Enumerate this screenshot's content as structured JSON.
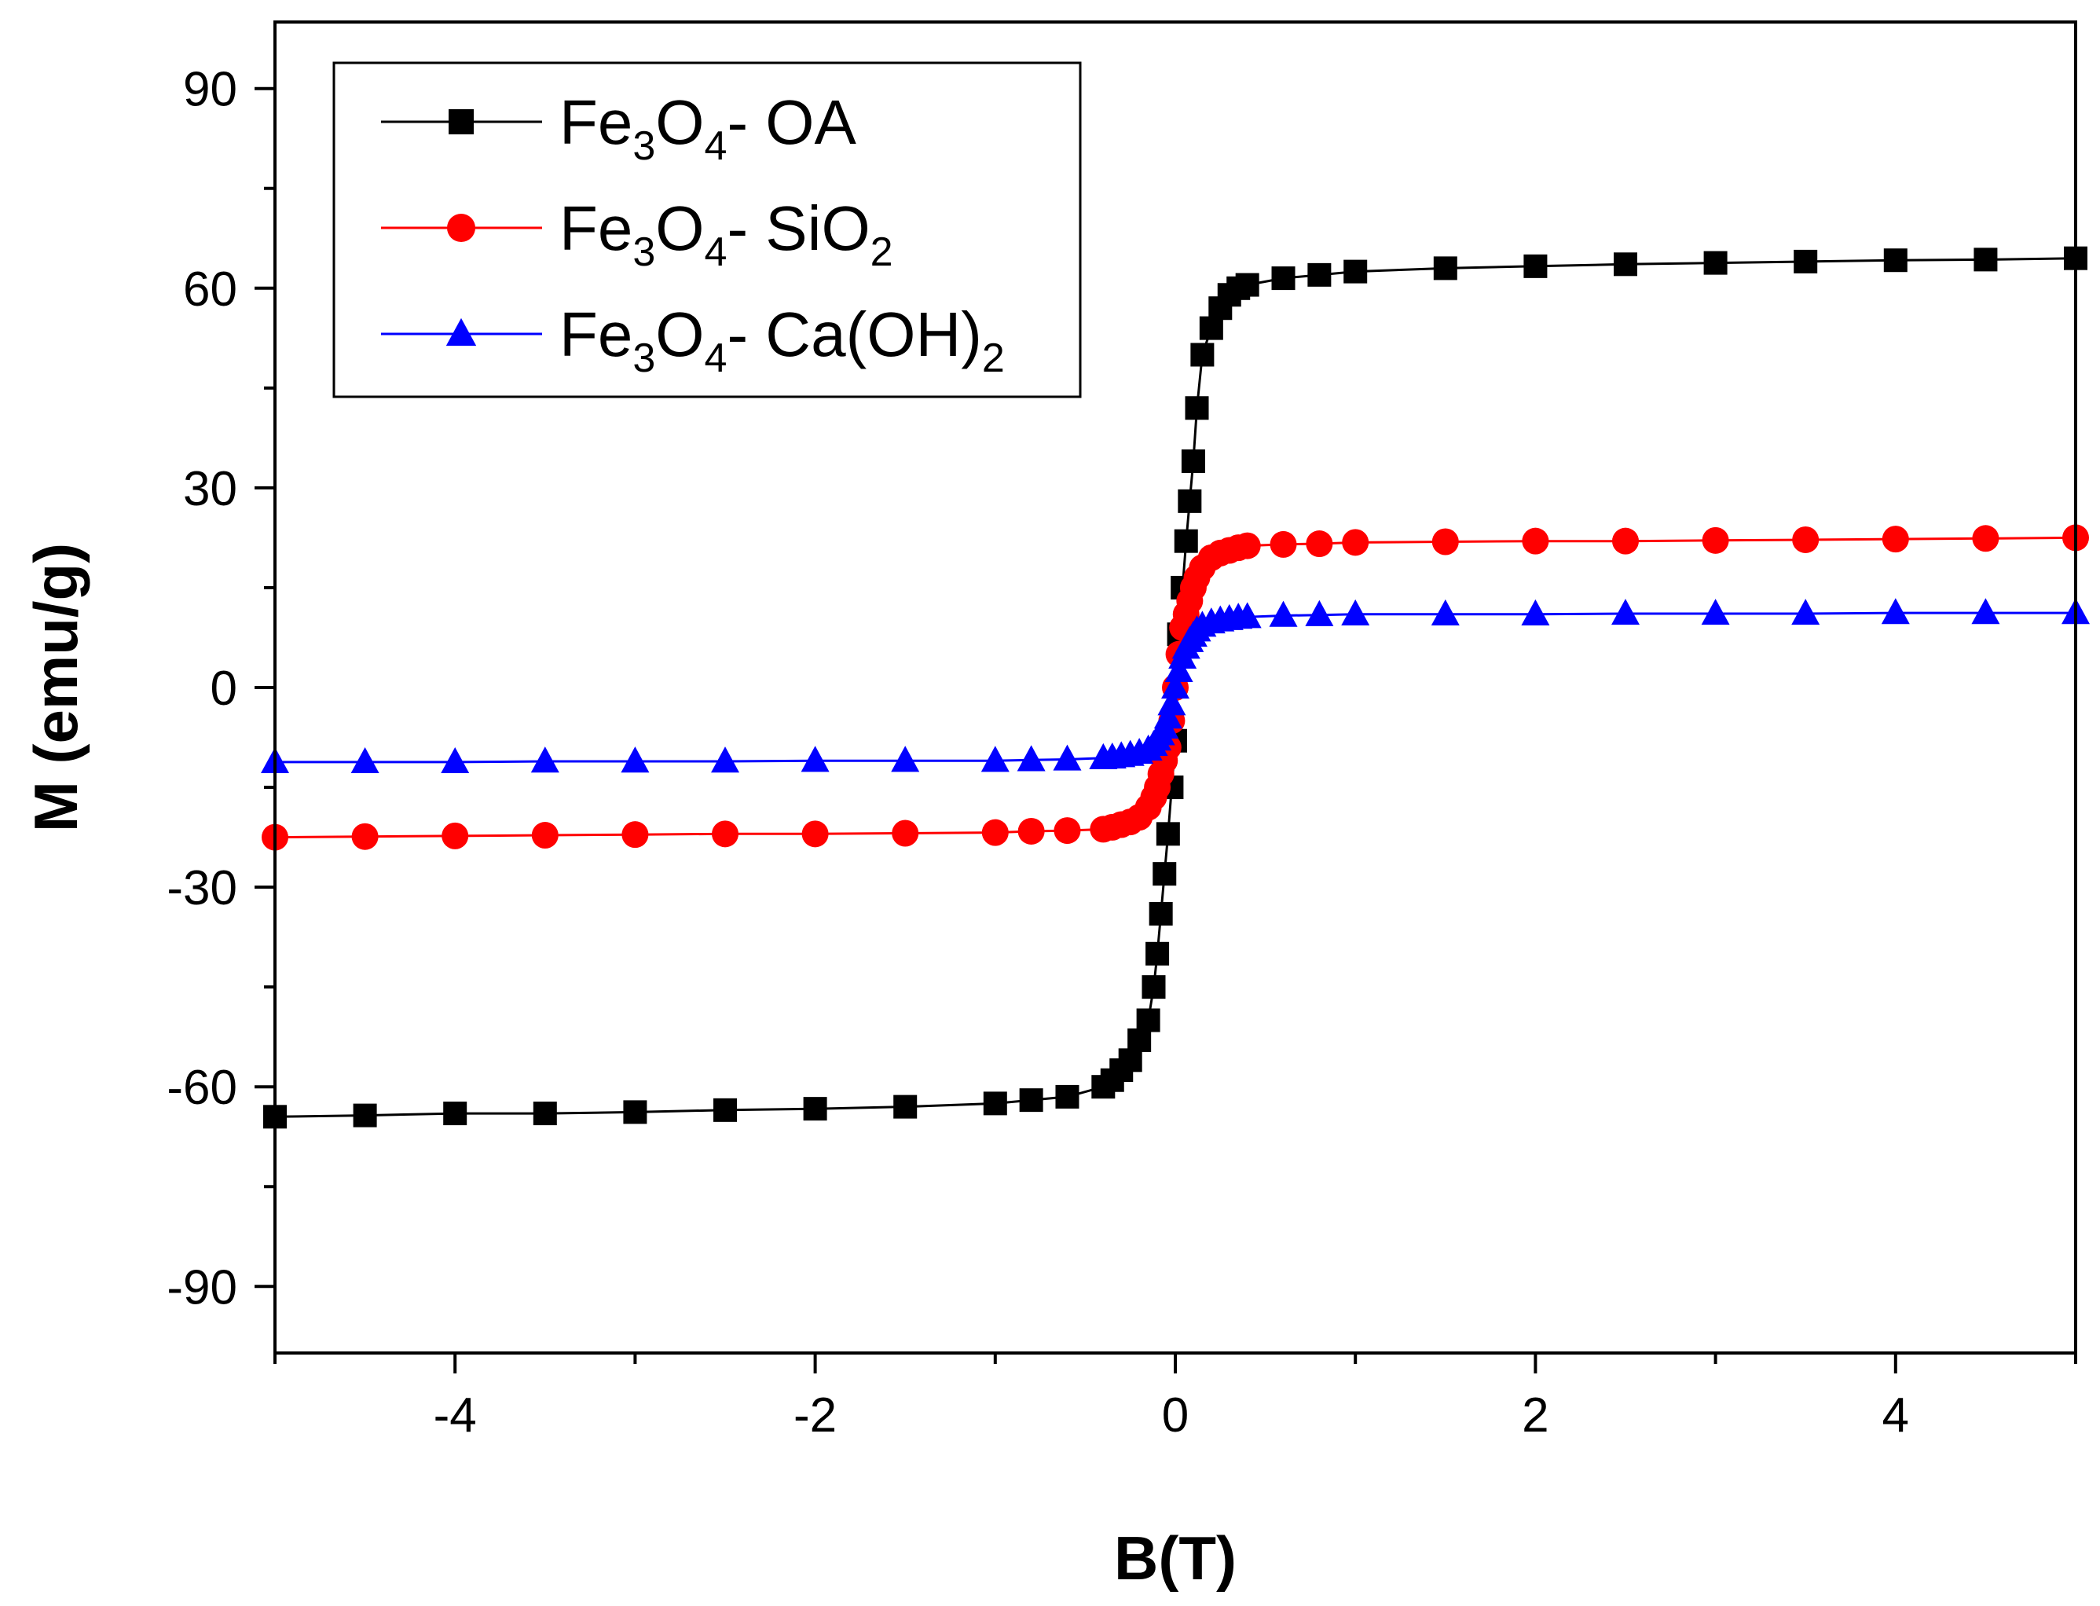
{
  "chart_data": {
    "type": "line",
    "title": "",
    "xlabel": "B(T)",
    "ylabel": "M (emu/g)",
    "xlim": [
      -5,
      5
    ],
    "ylim": [
      -100,
      100
    ],
    "xticks": [
      -4,
      -2,
      0,
      2,
      4
    ],
    "xtick_labels": [
      "-4",
      "-2",
      "0",
      "2",
      "4"
    ],
    "yticks": [
      -90,
      -60,
      -30,
      0,
      30,
      60,
      90
    ],
    "ytick_labels": [
      "-90",
      "-60",
      "-30",
      "0",
      "30",
      "60",
      "90"
    ],
    "grid": false,
    "legend_position": "top-left",
    "series": [
      {
        "name": "Fe3O4- OA",
        "legend": {
          "base": "Fe",
          "s1": "3",
          "mid": "O",
          "s2": "4",
          "suffix": "- OA",
          "s3": ""
        },
        "color": "#000000",
        "marker": "square",
        "x": [
          -5,
          -4.5,
          -4,
          -3.5,
          -3,
          -2.5,
          -2,
          -1.5,
          -1,
          -0.8,
          -0.6,
          -0.4,
          -0.35,
          -0.3,
          -0.25,
          -0.2,
          -0.15,
          -0.12,
          -0.1,
          -0.08,
          -0.06,
          -0.04,
          -0.02,
          0,
          0.02,
          0.04,
          0.06,
          0.08,
          0.1,
          0.12,
          0.15,
          0.2,
          0.25,
          0.3,
          0.35,
          0.4,
          0.6,
          0.8,
          1,
          1.5,
          2,
          2.5,
          3,
          3.5,
          4,
          4.5,
          5
        ],
        "y": [
          -64.5,
          -64.3,
          -64,
          -64,
          -63.8,
          -63.5,
          -63.3,
          -63,
          -62.5,
          -62,
          -61.5,
          -60,
          -59,
          -57.5,
          -56,
          -53,
          -50,
          -45,
          -40,
          -34,
          -28,
          -22,
          -15,
          -8,
          8,
          15,
          22,
          28,
          34,
          42,
          50,
          54,
          57,
          59,
          60,
          60.5,
          61.5,
          62,
          62.5,
          63,
          63.3,
          63.6,
          63.8,
          64,
          64.2,
          64.3,
          64.5
        ]
      },
      {
        "name": "Fe3O4- SiO2",
        "legend": {
          "base": "Fe",
          "s1": "3",
          "mid": "O",
          "s2": "4",
          "suffix": "- SiO",
          "s3": "2"
        },
        "color": "#ff0000",
        "marker": "circle",
        "x": [
          -5,
          -4.5,
          -4,
          -3.5,
          -3,
          -2.5,
          -2,
          -1.5,
          -1,
          -0.8,
          -0.6,
          -0.4,
          -0.35,
          -0.3,
          -0.25,
          -0.2,
          -0.15,
          -0.12,
          -0.1,
          -0.08,
          -0.06,
          -0.04,
          -0.02,
          0,
          0.02,
          0.04,
          0.06,
          0.08,
          0.1,
          0.12,
          0.15,
          0.2,
          0.25,
          0.3,
          0.35,
          0.4,
          0.6,
          0.8,
          1,
          1.5,
          2,
          2.5,
          3,
          3.5,
          4,
          4.5,
          5
        ],
        "y": [
          -22.5,
          -22.4,
          -22.3,
          -22.2,
          -22.1,
          -22,
          -22,
          -21.9,
          -21.8,
          -21.6,
          -21.5,
          -21.3,
          -21,
          -20.6,
          -20.2,
          -19.5,
          -18,
          -16.5,
          -15,
          -13,
          -11,
          -9,
          -5,
          0,
          5,
          9,
          11,
          13,
          15,
          16.5,
          18,
          19.5,
          20.2,
          20.6,
          21,
          21.3,
          21.5,
          21.6,
          21.8,
          21.9,
          22,
          22,
          22.1,
          22.2,
          22.3,
          22.4,
          22.5
        ]
      },
      {
        "name": "Fe3O4- Ca(OH)2",
        "legend": {
          "base": "Fe",
          "s1": "3",
          "mid": "O",
          "s2": "4",
          "suffix": "- Ca(OH)",
          "s3": "2"
        },
        "color": "#0000ff",
        "marker": "triangle",
        "x": [
          -5,
          -4.5,
          -4,
          -3.5,
          -3,
          -2.5,
          -2,
          -1.5,
          -1,
          -0.8,
          -0.6,
          -0.4,
          -0.35,
          -0.3,
          -0.25,
          -0.2,
          -0.15,
          -0.12,
          -0.1,
          -0.08,
          -0.06,
          -0.04,
          -0.02,
          0,
          0.02,
          0.04,
          0.06,
          0.08,
          0.1,
          0.12,
          0.15,
          0.2,
          0.25,
          0.3,
          0.35,
          0.4,
          0.6,
          0.8,
          1,
          1.5,
          2,
          2.5,
          3,
          3.5,
          4,
          4.5,
          5
        ],
        "y": [
          -11.2,
          -11.2,
          -11.2,
          -11.1,
          -11.1,
          -11.1,
          -11,
          -11,
          -11,
          -10.9,
          -10.8,
          -10.6,
          -10.5,
          -10.3,
          -10.1,
          -9.8,
          -9.3,
          -8.6,
          -7.8,
          -7,
          -6,
          -4.5,
          -2.5,
          0,
          2.5,
          4.5,
          6,
          7,
          7.8,
          8.6,
          9.3,
          9.8,
          10.1,
          10.3,
          10.5,
          10.6,
          10.8,
          10.9,
          11,
          11,
          11,
          11.1,
          11.1,
          11.1,
          11.2,
          11.2,
          11.2
        ]
      }
    ]
  }
}
